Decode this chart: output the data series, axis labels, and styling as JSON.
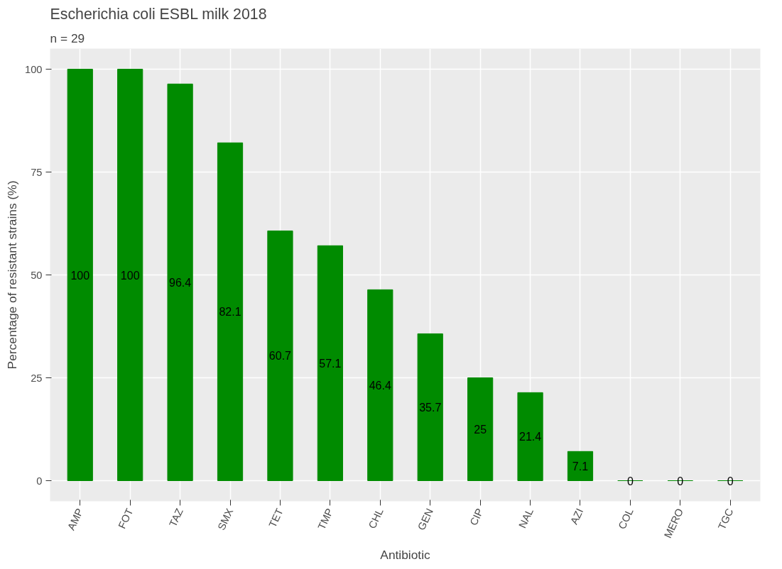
{
  "chart_data": {
    "type": "bar",
    "title": "Escherichia coli ESBL milk 2018",
    "subtitle": "n =  29",
    "xlabel": "Antibiotic",
    "ylabel": "Percentage of resistant strains (%)",
    "categories": [
      "AMP",
      "FOT",
      "TAZ",
      "SMX",
      "TET",
      "TMP",
      "CHL",
      "GEN",
      "CIP",
      "NAL",
      "AZI",
      "COL",
      "MERO",
      "TGC"
    ],
    "values": [
      100,
      100,
      96.4,
      82.1,
      60.7,
      57.1,
      46.4,
      35.7,
      25,
      21.4,
      7.1,
      0,
      0,
      0
    ],
    "color": "#008b00",
    "ylim": [
      -5,
      105
    ],
    "yticks": [
      0,
      25,
      50,
      75,
      100
    ],
    "grid": true,
    "data_labels": true
  }
}
